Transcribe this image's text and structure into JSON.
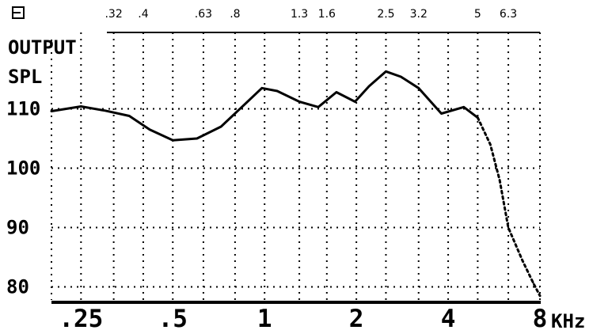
{
  "chart_data": {
    "type": "line",
    "ylabel": [
      "OUTPUT",
      "SPL"
    ],
    "x_unit": "KHz",
    "x_scale": "log",
    "x_range": [
      0.2,
      8
    ],
    "y_range": [
      75,
      125
    ],
    "grid": true,
    "top_ticks": [
      {
        "value": 0.32,
        "label": ".32"
      },
      {
        "value": 0.4,
        "label": ".4"
      },
      {
        "value": 0.63,
        "label": ".63"
      },
      {
        "value": 0.8,
        "label": ".8"
      },
      {
        "value": 1.3,
        "label": "1.3"
      },
      {
        "value": 1.6,
        "label": "1.6"
      },
      {
        "value": 2.5,
        "label": "2.5"
      },
      {
        "value": 3.2,
        "label": "3.2"
      },
      {
        "value": 5,
        "label": "5"
      },
      {
        "value": 6.3,
        "label": "6.3"
      }
    ],
    "bottom_ticks": [
      {
        "value": 0.25,
        "label": ".25"
      },
      {
        "value": 0.5,
        "label": ".5"
      },
      {
        "value": 1,
        "label": "1"
      },
      {
        "value": 2,
        "label": "2"
      },
      {
        "value": 4,
        "label": "4"
      },
      {
        "value": 8,
        "label": "8"
      }
    ],
    "y_ticks": [
      {
        "value": 110,
        "label": "110"
      },
      {
        "value": 100,
        "label": "100"
      },
      {
        "value": 90,
        "label": "90"
      },
      {
        "value": 80,
        "label": "80"
      }
    ],
    "series": [
      {
        "style": "solid",
        "points": [
          [
            0.2,
            109.6
          ],
          [
            0.25,
            110.4
          ],
          [
            0.3,
            109.7
          ],
          [
            0.36,
            108.8
          ],
          [
            0.42,
            106.5
          ],
          [
            0.5,
            104.7
          ],
          [
            0.6,
            105.0
          ],
          [
            0.72,
            107.0
          ],
          [
            0.85,
            110.5
          ],
          [
            0.98,
            113.5
          ],
          [
            1.1,
            113.0
          ],
          [
            1.3,
            111.2
          ],
          [
            1.5,
            110.3
          ],
          [
            1.72,
            112.8
          ],
          [
            1.98,
            111.2
          ],
          [
            2.2,
            113.8
          ],
          [
            2.5,
            116.3
          ],
          [
            2.8,
            115.4
          ],
          [
            3.2,
            113.5
          ],
          [
            3.8,
            109.2
          ],
          [
            4.5,
            110.3
          ],
          [
            5.0,
            108.5
          ]
        ]
      },
      {
        "style": "dotted",
        "points": [
          [
            5.0,
            108.5
          ],
          [
            5.5,
            104.0
          ],
          [
            5.9,
            98.0
          ],
          [
            6.3,
            90.0
          ],
          [
            7.0,
            84.5
          ],
          [
            7.6,
            80.7
          ],
          [
            8.0,
            78.5
          ]
        ]
      }
    ]
  }
}
